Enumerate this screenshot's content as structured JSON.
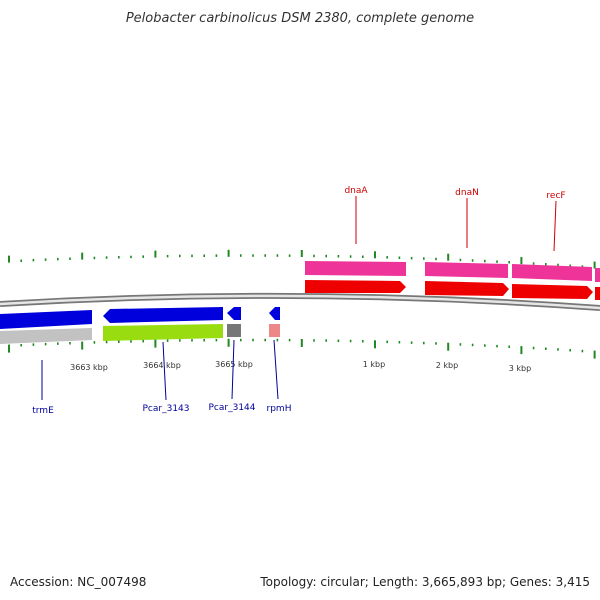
{
  "title": "Pelobacter carbinolicus DSM 2380, complete genome",
  "scale_labels": [
    "3663 kbp",
    "3664 kbp",
    "3665 kbp",
    "1 kbp",
    "2 kbp",
    "3 kbp"
  ],
  "genes": {
    "forward": [
      "dnaA",
      "dnaN",
      "recF"
    ],
    "reverse": [
      "trmE",
      "Pcar_3143",
      "Pcar_3144",
      "rpmH"
    ]
  },
  "footer": {
    "accession": "Accession: NC_007498",
    "summary": "Topology: circular; Length: 3,665,893 bp; Genes: 3,415"
  },
  "colors": {
    "forward_cds": "#ee0000",
    "forward_gene": "#ee3399",
    "reverse_cds": "#0000dd",
    "reverse_gene_lime": "#99dd11",
    "reverse_gene_gray": "#777777",
    "reverse_gene_pink": "#ee8888",
    "backbone": "#888888",
    "ticks": "#228822",
    "forward_label": "#cc0000",
    "reverse_label": "#000099"
  }
}
